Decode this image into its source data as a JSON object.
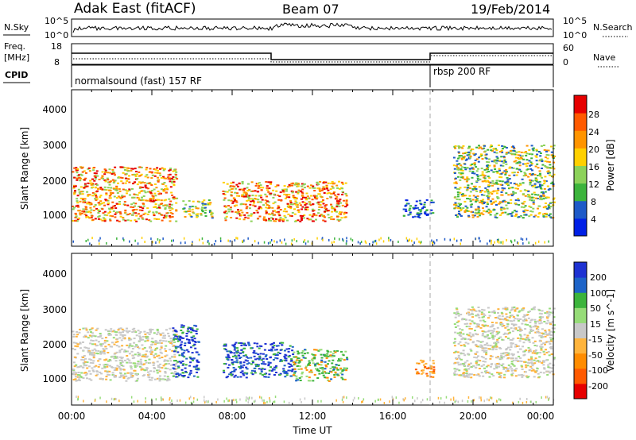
{
  "header": {
    "station": "Adak East (fitACF)",
    "beam": "Beam 07",
    "date": "19/Feb/2014"
  },
  "panels": {
    "nsky_label": "N.Sky",
    "nsky_ticks": [
      "10^5",
      "10^0"
    ],
    "nsearch_label": "N.Search",
    "nsearch_ticks": [
      "10^5",
      "10^0"
    ],
    "freq_label_top": "Freq.",
    "freq_label_bottom": "[MHz]",
    "freq_ticks": [
      "18",
      "8"
    ],
    "nave_label": "Nave",
    "nave_ticks": [
      "60",
      "0"
    ],
    "cpid_label": "CPID",
    "cpid_segments": [
      "normalsound (fast) 157 RF",
      "rbsp 200 RF"
    ]
  },
  "chart_data": [
    {
      "type": "heatmap",
      "name": "power",
      "ylabel": "Slant Range [km]",
      "xlabel": "",
      "y_ticks": [
        "1000",
        "2000",
        "3000",
        "4000"
      ],
      "ylim": [
        200,
        4500
      ],
      "colorbar_label": "Power [dB]",
      "colorbar_ticks": [
        "4",
        "8",
        "12",
        "16",
        "20",
        "24",
        "28"
      ],
      "colorbar_colors": [
        "#0020e6",
        "#1e5ac8",
        "#3cb43c",
        "#8cd25a",
        "#ffd000",
        "#ff9400",
        "#ff5a00",
        "#e60000"
      ],
      "echo_regions": [
        {
          "t0": 0.0,
          "t1": 5.2,
          "r0": 900,
          "r1": 2400,
          "level": "high"
        },
        {
          "t0": 5.5,
          "t1": 7.0,
          "r0": 1000,
          "r1": 1500,
          "level": "mid"
        },
        {
          "t0": 7.5,
          "t1": 13.7,
          "r0": 900,
          "r1": 2000,
          "level": "high"
        },
        {
          "t0": 16.5,
          "t1": 18.0,
          "r0": 1000,
          "r1": 1500,
          "level": "low"
        },
        {
          "t0": 19.0,
          "t1": 24.0,
          "r0": 1000,
          "r1": 3000,
          "level": "mid"
        }
      ]
    },
    {
      "type": "heatmap",
      "name": "velocity",
      "ylabel": "Slant Range [km]",
      "xlabel": "Time UT",
      "y_ticks": [
        "1000",
        "2000",
        "3000",
        "4000"
      ],
      "x_ticks": [
        "00:00",
        "04:00",
        "08:00",
        "12:00",
        "16:00",
        "20:00",
        "00:00"
      ],
      "ylim": [
        200,
        4500
      ],
      "colorbar_label": "Velocity [m s^-1]",
      "colorbar_ticks": [
        "200",
        "100",
        "50",
        "15",
        "-15",
        "-50",
        "-100",
        "-200"
      ],
      "colorbar_colors": [
        "#1e32d2",
        "#1e64c8",
        "#3cb43c",
        "#96dc78",
        "#c8c8c8",
        "#ffb43c",
        "#ff8c00",
        "#ff5a00",
        "#e60000"
      ],
      "echo_regions": [
        {
          "t0": 0.0,
          "t1": 5.2,
          "r0": 900,
          "r1": 2400,
          "level": "ground"
        },
        {
          "t0": 5.0,
          "t1": 6.3,
          "r0": 1000,
          "r1": 2500,
          "level": "toward"
        },
        {
          "t0": 7.5,
          "t1": 11.0,
          "r0": 1000,
          "r1": 2000,
          "level": "toward"
        },
        {
          "t0": 11.0,
          "t1": 13.7,
          "r0": 900,
          "r1": 1800,
          "level": "mixed"
        },
        {
          "t0": 17.0,
          "t1": 18.0,
          "r0": 1000,
          "r1": 1500,
          "level": "away"
        },
        {
          "t0": 19.0,
          "t1": 24.0,
          "r0": 1000,
          "r1": 3000,
          "level": "ground"
        }
      ]
    }
  ]
}
